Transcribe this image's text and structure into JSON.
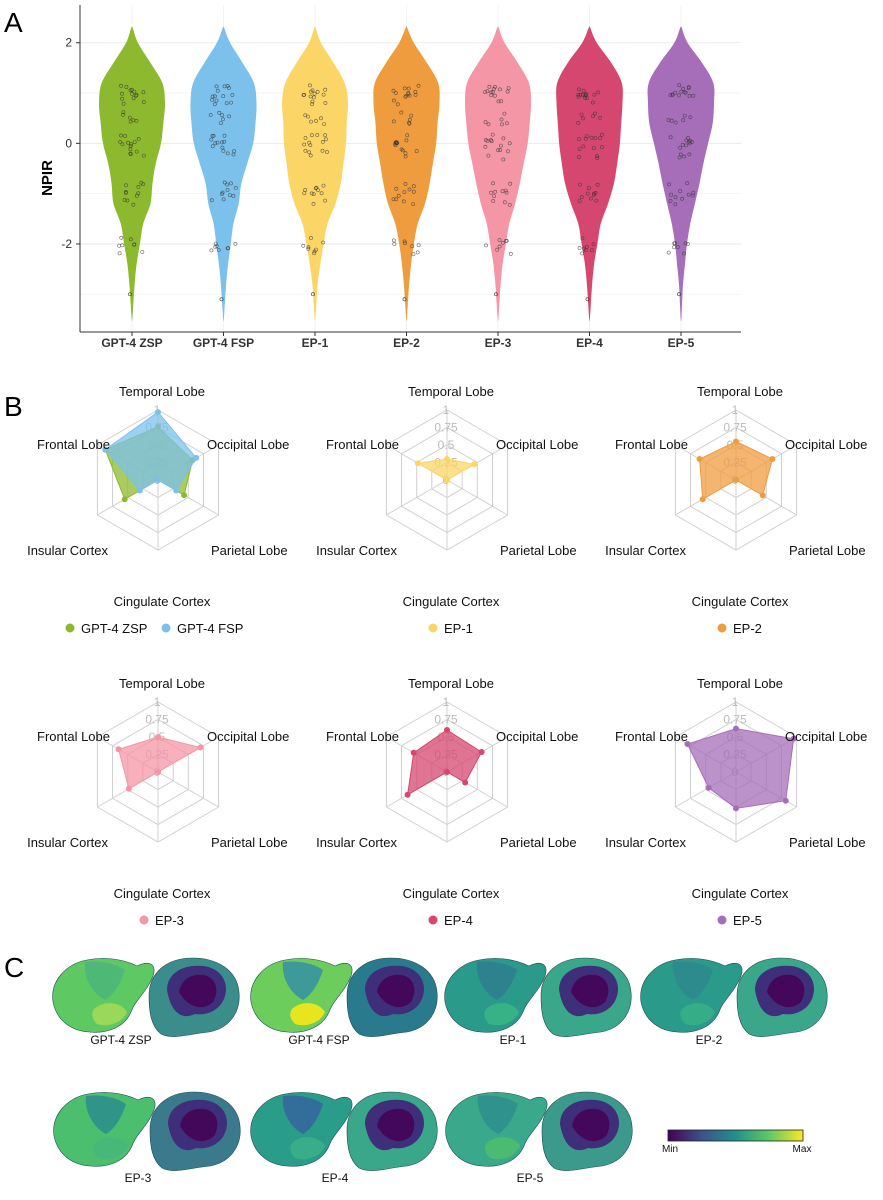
{
  "panel_labels": {
    "a": "A",
    "b": "B",
    "c": "C"
  },
  "chart_data": [
    {
      "type": "violin",
      "panel": "A",
      "ylabel": "NPIR",
      "xlabel": "",
      "ylim": [
        -3.75,
        2.75
      ],
      "y_ticks": [
        {
          "value": 2,
          "label": "2"
        },
        {
          "value": 0,
          "label": "0"
        },
        {
          "value": -2,
          "label": "-2"
        }
      ],
      "grid": true,
      "categories": [
        "GPT-4 ZSP",
        "GPT-4 FSP",
        "EP-1",
        "EP-2",
        "EP-3",
        "EP-4",
        "EP-5"
      ],
      "colors": [
        "#8db92e",
        "#7cc0ec",
        "#fbd566",
        "#ef9c3f",
        "#f496a6",
        "#d6476f",
        "#a66db9"
      ],
      "density_profile_y": [
        2.3,
        2.0,
        1.6,
        1.2,
        0.8,
        0.4,
        0.0,
        -0.4,
        -0.8,
        -1.2,
        -1.6,
        -2.0,
        -2.4,
        -2.8,
        -3.2,
        -3.5
      ],
      "series": [
        {
          "name": "GPT-4 ZSP",
          "widths": [
            0.02,
            0.18,
            0.56,
            0.92,
            1.0,
            0.95,
            0.88,
            0.72,
            0.62,
            0.56,
            0.34,
            0.24,
            0.14,
            0.08,
            0.04,
            0.01
          ]
        },
        {
          "name": "GPT-4 FSP",
          "widths": [
            0.02,
            0.2,
            0.58,
            0.92,
            1.0,
            0.97,
            0.9,
            0.72,
            0.54,
            0.46,
            0.3,
            0.22,
            0.14,
            0.08,
            0.04,
            0.01
          ]
        },
        {
          "name": "EP-1",
          "widths": [
            0.02,
            0.18,
            0.56,
            0.9,
            1.0,
            0.96,
            0.94,
            0.86,
            0.78,
            0.62,
            0.38,
            0.26,
            0.16,
            0.08,
            0.04,
            0.01
          ]
        },
        {
          "name": "EP-2",
          "widths": [
            0.02,
            0.22,
            0.62,
            0.96,
            1.0,
            0.94,
            0.9,
            0.8,
            0.7,
            0.56,
            0.34,
            0.22,
            0.14,
            0.08,
            0.04,
            0.01
          ]
        },
        {
          "name": "EP-3",
          "widths": [
            0.02,
            0.2,
            0.6,
            0.94,
            1.0,
            0.96,
            0.9,
            0.78,
            0.66,
            0.52,
            0.34,
            0.24,
            0.14,
            0.08,
            0.04,
            0.01
          ]
        },
        {
          "name": "EP-4",
          "widths": [
            0.02,
            0.22,
            0.66,
            0.98,
            1.0,
            0.96,
            0.92,
            0.84,
            0.74,
            0.56,
            0.34,
            0.24,
            0.14,
            0.08,
            0.04,
            0.01
          ]
        },
        {
          "name": "EP-5",
          "widths": [
            0.02,
            0.2,
            0.64,
            0.98,
            1.0,
            0.96,
            0.82,
            0.68,
            0.56,
            0.42,
            0.28,
            0.18,
            0.12,
            0.06,
            0.03,
            0.01
          ]
        }
      ],
      "points_note": "jittered points cluster around 1.0, 0.5, 0, -1.0 and -2.0"
    },
    {
      "type": "radar",
      "panel": "B",
      "axes": [
        "Temporal Lobe",
        "Occipital Lobe",
        "Parietal Lobe",
        "Cingulate Cortex",
        "Insular Cortex",
        "Frontal Lobe"
      ],
      "range": [
        0,
        1
      ],
      "ticks": [
        "0",
        "0.25",
        "0.5",
        "0.75",
        "1"
      ],
      "charts": [
        {
          "series": [
            {
              "name": "GPT-4 ZSP",
              "color": "#8db92e",
              "values": [
                0.76,
                0.57,
                0.43,
                0.0,
                0.55,
                0.87
              ]
            },
            {
              "name": "GPT-4 FSP",
              "color": "#7cc0ec",
              "values": [
                0.97,
                0.63,
                0.3,
                0.0,
                0.3,
                0.87
              ]
            }
          ]
        },
        {
          "series": [
            {
              "name": "EP-1",
              "color": "#fbd566",
              "values": [
                0.3,
                0.45,
                0.0,
                0.0,
                0.0,
                0.48
              ]
            }
          ]
        },
        {
          "series": [
            {
              "name": "EP-2",
              "color": "#ef9c3f",
              "values": [
                0.55,
                0.6,
                0.44,
                0.0,
                0.55,
                0.6
              ]
            }
          ]
        },
        {
          "series": [
            {
              "name": "EP-3",
              "color": "#f496a6",
              "values": [
                0.5,
                0.7,
                0.0,
                0.0,
                0.48,
                0.65
              ]
            }
          ]
        },
        {
          "series": [
            {
              "name": "EP-4",
              "color": "#d6476f",
              "values": [
                0.6,
                0.57,
                0.3,
                0.0,
                0.65,
                0.55
              ]
            }
          ]
        },
        {
          "series": [
            {
              "name": "EP-5",
              "color": "#a66db9",
              "values": [
                0.62,
                0.95,
                0.82,
                0.52,
                0.45,
                0.8
              ]
            }
          ]
        }
      ]
    },
    {
      "type": "heatmap",
      "panel": "C",
      "description": "brain surface maps",
      "labels": [
        "GPT-4 ZSP",
        "GPT-4 FSP",
        "EP-1",
        "EP-2",
        "EP-3",
        "EP-4",
        "EP-5"
      ],
      "colorbar": {
        "min_label": "Min",
        "max_label": "Max",
        "colors": [
          "#440154",
          "#3b528b",
          "#21918c",
          "#5ec962",
          "#fde725"
        ]
      }
    }
  ]
}
